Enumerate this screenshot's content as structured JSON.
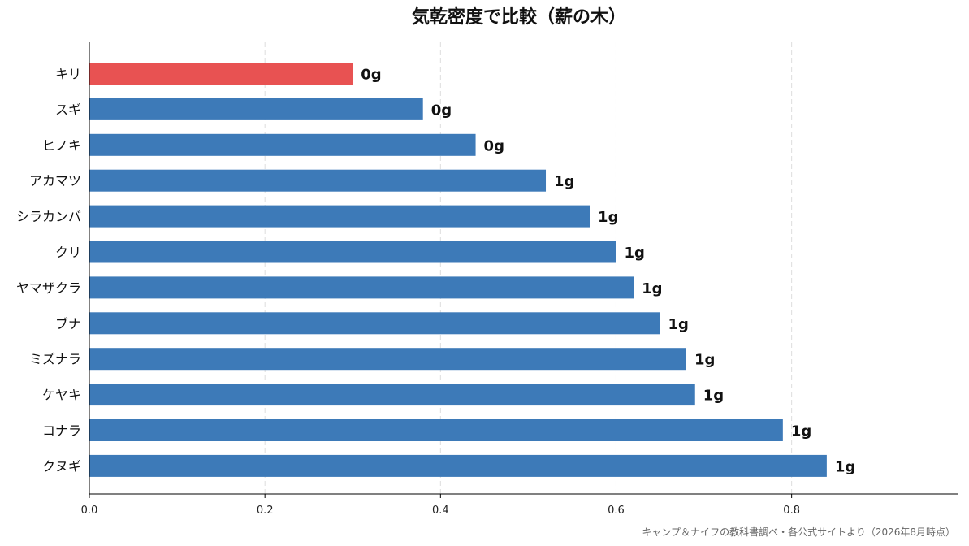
{
  "chart_data": {
    "type": "bar",
    "orientation": "horizontal",
    "title": "気乾密度で比較（薪の木）",
    "categories": [
      "キリ",
      "スギ",
      "ヒノキ",
      "アカマツ",
      "シラカンバ",
      "クリ",
      "ヤマザクラ",
      "ブナ",
      "ミズナラ",
      "ケヤキ",
      "コナラ",
      "クヌギ"
    ],
    "values": [
      0.3,
      0.38,
      0.44,
      0.52,
      0.57,
      0.6,
      0.62,
      0.65,
      0.68,
      0.69,
      0.79,
      0.84
    ],
    "value_labels": [
      "0g",
      "0g",
      "0g",
      "1g",
      "1g",
      "1g",
      "1g",
      "1g",
      "1g",
      "1g",
      "1g",
      "1g"
    ],
    "highlight_index": 0,
    "colors": {
      "bar": "#3d7ab8",
      "highlight": "#e85252",
      "grid": "#dddddd",
      "axis": "#000000"
    },
    "xlim": [
      0,
      0.99
    ],
    "xticks": [
      0.0,
      0.2,
      0.4,
      0.6,
      0.8
    ],
    "xtick_labels": [
      "0.0",
      "0.2",
      "0.4",
      "0.6",
      "0.8"
    ],
    "xlabel": "",
    "ylabel": "",
    "grid": "vertical-dashed",
    "legend": "none"
  },
  "source_note": "キャンプ＆ナイフの教科書調べ・各公式サイトより（2026年8月時点）"
}
